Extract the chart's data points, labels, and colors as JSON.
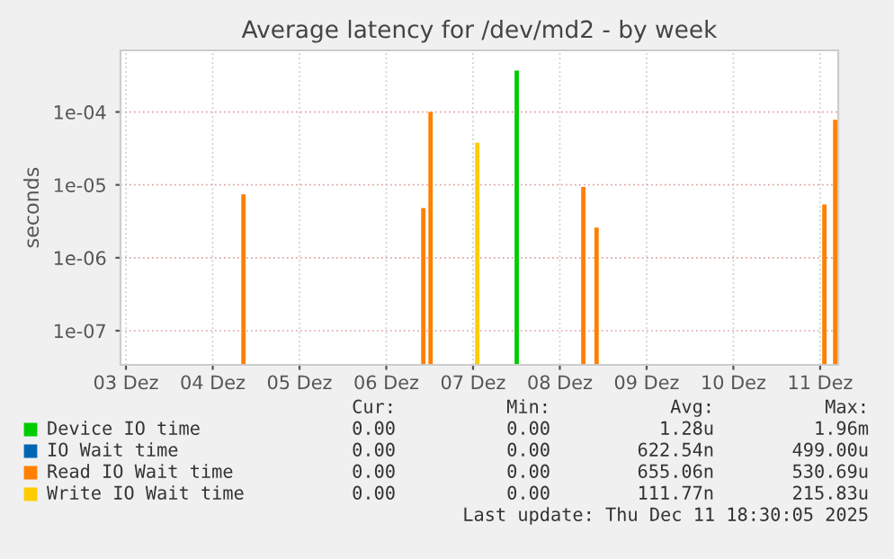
{
  "chart_data": {
    "type": "bar",
    "title": "Average latency for /dev/md2 - by week",
    "ylabel": "seconds",
    "log": "y",
    "grid": true,
    "legend": "bottom",
    "xlim": [
      "2025-12-03T10:30",
      "2025-12-11T17:00"
    ],
    "xticks": [
      {
        "value": "2025-12-03T12:00",
        "label": "03 Dez"
      },
      {
        "value": "2025-12-04T12:00",
        "label": "04 Dez"
      },
      {
        "value": "2025-12-05T12:00",
        "label": "05 Dez"
      },
      {
        "value": "2025-12-06T12:00",
        "label": "06 Dez"
      },
      {
        "value": "2025-12-07T12:00",
        "label": "07 Dez"
      },
      {
        "value": "2025-12-08T12:00",
        "label": "08 Dez"
      },
      {
        "value": "2025-12-09T12:00",
        "label": "09 Dez"
      },
      {
        "value": "2025-12-10T12:00",
        "label": "10 Dez"
      },
      {
        "value": "2025-12-11T12:00",
        "label": "11 Dez"
      }
    ],
    "ylim": [
      3.4e-08,
      0.0007
    ],
    "yticks": [
      {
        "value": 1e-07,
        "label": "1e-07"
      },
      {
        "value": 1e-06,
        "label": "1e-06"
      },
      {
        "value": 1e-05,
        "label": "1e-05"
      },
      {
        "value": 0.0001,
        "label": "1e-04"
      }
    ],
    "series": [
      {
        "name": "Device IO time",
        "color": "#00cc00",
        "x": [
          "2025-12-08T00:05"
        ],
        "values": [
          0.00037
        ]
      },
      {
        "name": "IO Wait time",
        "color": "#0066b3"
      },
      {
        "name": "Read IO Wait time",
        "color": "#ff8000",
        "x": [
          "2025-12-04T20:30",
          "2025-12-06T22:15",
          "2025-12-07T00:15",
          "2025-12-08T18:30",
          "2025-12-08T22:10",
          "2025-12-11T13:10",
          "2025-12-11T16:10"
        ],
        "values": [
          7.4e-06,
          4.8e-06,
          0.0001,
          9.4e-06,
          2.6e-06,
          5.4e-06,
          7.8e-05
        ]
      },
      {
        "name": "Write IO Wait time",
        "color": "#ffcc00",
        "x": [
          "2025-12-07T13:10"
        ],
        "values": [
          3.8e-05
        ]
      }
    ],
    "annotations": [
      "Cur:",
      "Min:",
      "Avg:",
      "Max:",
      "0.00",
      "0.00",
      "1.28u",
      "1.96m",
      "0.00",
      "0.00",
      "622.54n",
      "499.00u",
      "0.00",
      "0.00",
      "655.06n",
      "530.69u",
      "0.00",
      "0.00",
      "111.77n",
      "215.83u",
      "Last update: Thu Dec 11 18:30:05 2025"
    ]
  }
}
